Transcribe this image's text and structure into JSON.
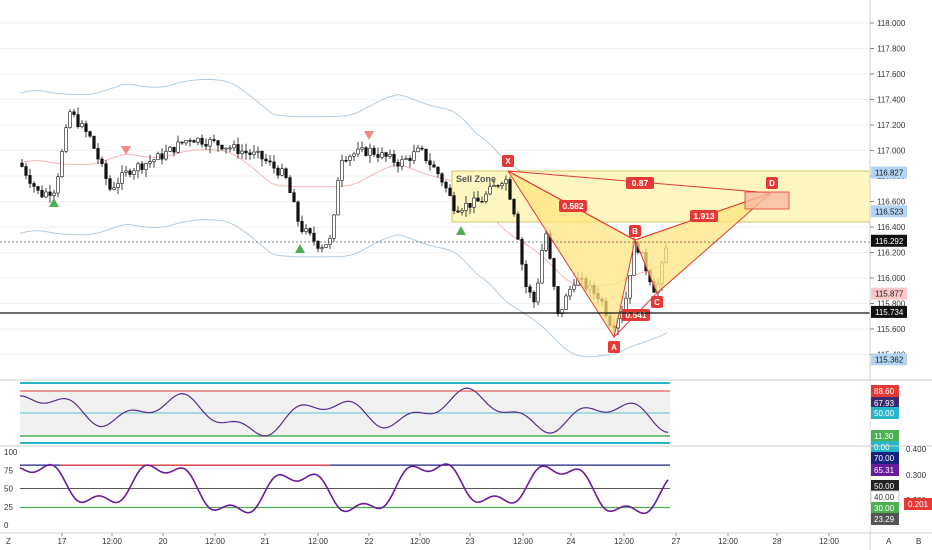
{
  "colors": {
    "up": "#4caf50",
    "down": "#e53935",
    "candle": "#111111",
    "pattern_fill": "#ffe680",
    "pattern_line": "#e53935",
    "zone_fill": "#fff7c2",
    "band": "#b3cde0",
    "mid_band": "#f4b6b6",
    "macd": "#5b2c8f",
    "stoch": "#6a1b9a"
  },
  "price_axis": {
    "ticks": [
      "118.000",
      "117.800",
      "117.600",
      "117.400",
      "117.200",
      "117.000",
      "116.800",
      "116.600",
      "116.400",
      "116.200",
      "116.000",
      "115.800",
      "115.600",
      "115.400"
    ],
    "tags": [
      {
        "value": "116.827",
        "bg": "#b3d4f5",
        "fg": "#1a1a1a"
      },
      {
        "value": "116.523",
        "bg": "#b3d4f5",
        "fg": "#1a1a1a"
      },
      {
        "value": "116.292",
        "bg": "#111111",
        "fg": "#ffffff"
      },
      {
        "value": "115.877",
        "bg": "#f8c7c7",
        "fg": "#1a1a1a"
      },
      {
        "value": "115.734",
        "bg": "#111111",
        "fg": "#ffffff"
      },
      {
        "value": "115.362",
        "bg": "#b3d4f5",
        "fg": "#1a1a1a"
      }
    ]
  },
  "time_axis": {
    "labels": [
      "17",
      "12:00",
      "20",
      "12:00",
      "21",
      "12:00",
      "22",
      "12:00",
      "23",
      "12:00",
      "24",
      "12:00",
      "27",
      "12:00",
      "28",
      "12:00"
    ],
    "left_marker": "Z",
    "right_marker": "A"
  },
  "pattern": {
    "zone_label": "Sell Zone",
    "points": [
      "X",
      "A",
      "B",
      "C",
      "D"
    ],
    "ratios": {
      "XB": "0.582",
      "XD": "0.87",
      "BD": "1.913",
      "AC": "0.541"
    }
  },
  "macd_panel": {
    "tags": [
      {
        "value": "88.60",
        "bg": "#e53935"
      },
      {
        "value": "67.93",
        "bg": "#3c2b6e"
      },
      {
        "value": "50.00",
        "bg": "#29b6c9"
      },
      {
        "value": "11.30",
        "bg": "#4caf50"
      },
      {
        "value": "0.00",
        "bg": "#29b6c9"
      }
    ]
  },
  "stoch_panel": {
    "left_ticks": [
      "100",
      "75",
      "50",
      "25",
      "0"
    ],
    "right_ticks": [
      "0.400",
      "0.300",
      "0.200"
    ],
    "tags": [
      {
        "value": "70.00",
        "bg": "#1a237e"
      },
      {
        "value": "65.31",
        "bg": "#6a1b9a"
      },
      {
        "value": "50.00",
        "bg": "#222222"
      },
      {
        "value": "40.00",
        "bg": "#ffffff"
      },
      {
        "value": "30.00",
        "bg": "#4caf50"
      },
      {
        "value": "23.29",
        "bg": "#555555"
      }
    ],
    "right_tag": {
      "value": "0.201",
      "bg": "#e53935"
    }
  },
  "bottom_marker": "B"
}
